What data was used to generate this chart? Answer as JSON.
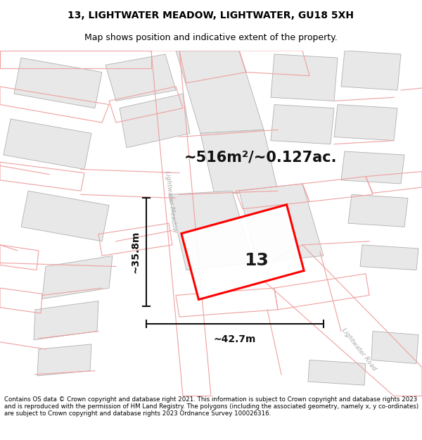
{
  "title": "13, LIGHTWATER MEADOW, LIGHTWATER, GU18 5XH",
  "subtitle": "Map shows position and indicative extent of the property.",
  "footer": "Contains OS data © Crown copyright and database right 2021. This information is subject to Crown copyright and database rights 2023 and is reproduced with the permission of HM Land Registry. The polygons (including the associated geometry, namely x, y co-ordinates) are subject to Crown copyright and database rights 2023 Ordnance Survey 100026316.",
  "area_label": "~516m²/~0.127ac.",
  "width_label": "~42.7m",
  "height_label": "~35.8m",
  "plot_number": "13",
  "map_bg": "#ffffff",
  "plot_fill": "#ffffff",
  "plot_border": "#ff0000",
  "bld_fill": "#e8e8e8",
  "bld_edge": "#b0b0b0",
  "pink_line": "#f0a0a0",
  "dim_color": "#111111",
  "road_label_color": "#aaaaaa",
  "title_fontsize": 10,
  "subtitle_fontsize": 9,
  "footer_fontsize": 6.2,
  "area_fontsize": 15,
  "dim_fontsize": 10,
  "plot_label_fontsize": 18
}
